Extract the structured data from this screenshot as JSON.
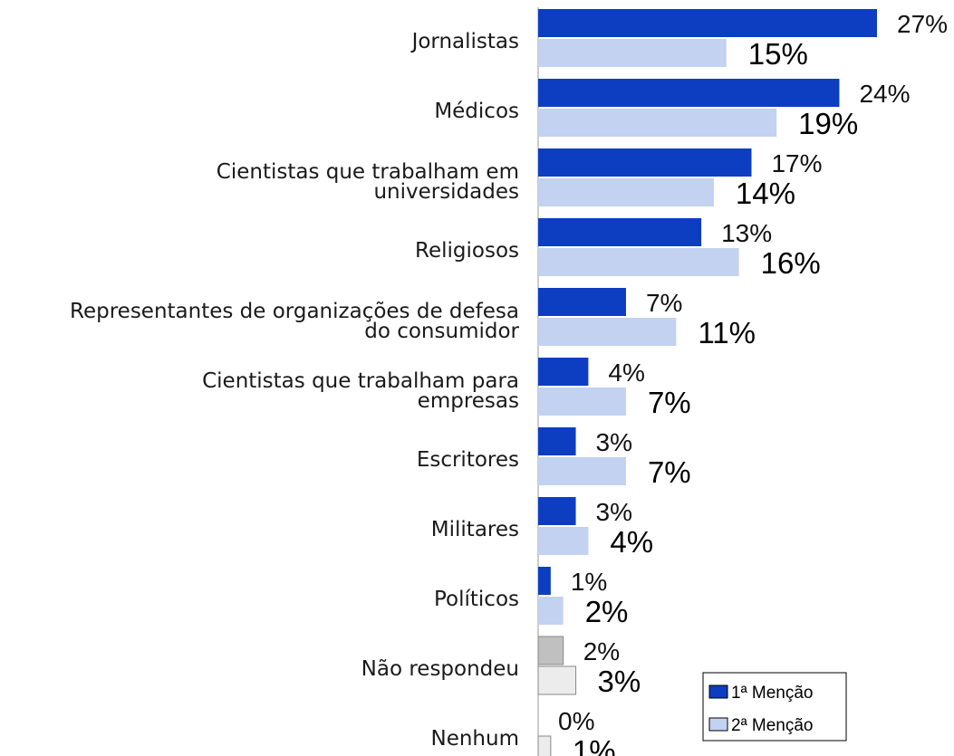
{
  "chart_data": {
    "type": "bar",
    "orientation": "horizontal",
    "categories": [
      [
        "Jornalistas"
      ],
      [
        "Médicos"
      ],
      [
        "Cientistas que trabalham em",
        "universidades"
      ],
      [
        "Religiosos"
      ],
      [
        "Representantes de organizações de defesa",
        "do consumidor"
      ],
      [
        "Cientistas que trabalham para",
        "empresas"
      ],
      [
        "Escritores"
      ],
      [
        "Militares"
      ],
      [
        "Políticos"
      ],
      [
        "Não respondeu"
      ],
      [
        "Nenhum"
      ]
    ],
    "series": [
      {
        "name": "1ª Menção",
        "values": [
          27,
          24,
          17,
          13,
          7,
          4,
          3,
          3,
          1,
          2,
          0
        ],
        "labels": [
          "27%",
          "24%",
          "17%",
          "13%",
          "7%",
          "4%",
          "3%",
          "3%",
          "1%",
          "2%",
          "0%"
        ],
        "color": "#0d3ec1",
        "neutral_color": "#c0c0c0"
      },
      {
        "name": "2ª Menção",
        "values": [
          15,
          19,
          14,
          16,
          11,
          7,
          7,
          4,
          2,
          3,
          1
        ],
        "labels": [
          "15%",
          "19%",
          "14%",
          "16%",
          "11%",
          "7%",
          "7%",
          "4%",
          "2%",
          "3%",
          "1%"
        ],
        "color": "#c2d2f0",
        "neutral_color": "#ececec"
      }
    ],
    "neutral_categories": [
      9,
      10
    ],
    "xlim": [
      0,
      27
    ],
    "grid": false,
    "legend": "bottom-right",
    "title": "",
    "xlabel": "",
    "ylabel": ""
  }
}
